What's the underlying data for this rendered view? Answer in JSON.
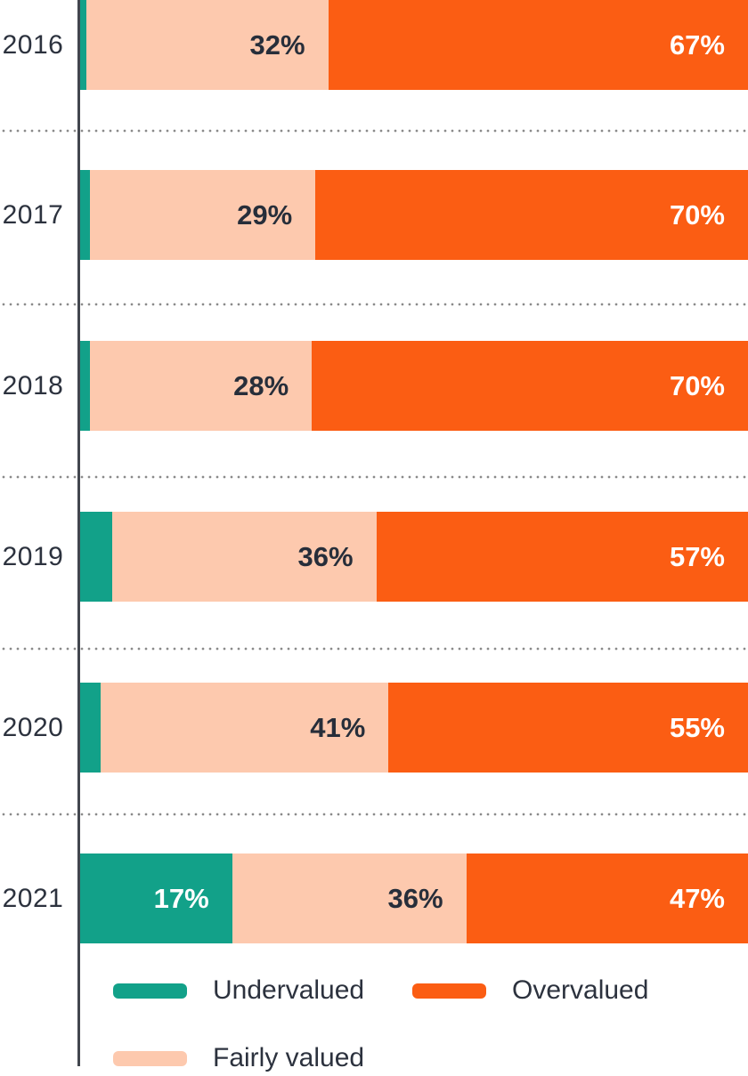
{
  "chart_data": {
    "type": "bar",
    "orientation": "horizontal",
    "stacked": true,
    "normalized_to_full_width": true,
    "title": "",
    "xlabel": "",
    "ylabel": "",
    "categories": [
      "2016",
      "2017",
      "2018",
      "2019",
      "2020",
      "2021"
    ],
    "series": [
      {
        "name": "Undervalued",
        "color": "#12a189",
        "label_color": "#ffffff",
        "values": [
          1.3,
          2,
          2,
          6.3,
          4,
          17
        ],
        "labels": [
          "",
          "",
          "",
          "",
          "",
          "17%"
        ]
      },
      {
        "name": "Fairly valued",
        "color": "#fdc9ae",
        "label_color": "#272e3a",
        "values": [
          32,
          29,
          28,
          36,
          41,
          36
        ],
        "labels": [
          "32%",
          "29%",
          "28%",
          "36%",
          "41%",
          "36%"
        ]
      },
      {
        "name": "Overvalued",
        "color": "#fb5d13",
        "label_color": "#ffffff",
        "values": [
          67,
          70,
          70,
          57,
          55,
          47
        ],
        "labels": [
          "67%",
          "70%",
          "70%",
          "57%",
          "55%",
          "47%"
        ]
      }
    ],
    "grid": "dotted horizontal separators between category rows",
    "legend_position": "bottom"
  },
  "legend": {
    "items": [
      {
        "label": "Undervalued",
        "color": "#12a189"
      },
      {
        "label": "Overvalued",
        "color": "#fb5d13"
      },
      {
        "label": "Fairly valued",
        "color": "#fdc9ae"
      }
    ]
  },
  "colors": {
    "background": "#ffffff",
    "axis_line": "#42464e",
    "category_text": "#2c323e",
    "separator_dots": "#8a8a8a"
  }
}
